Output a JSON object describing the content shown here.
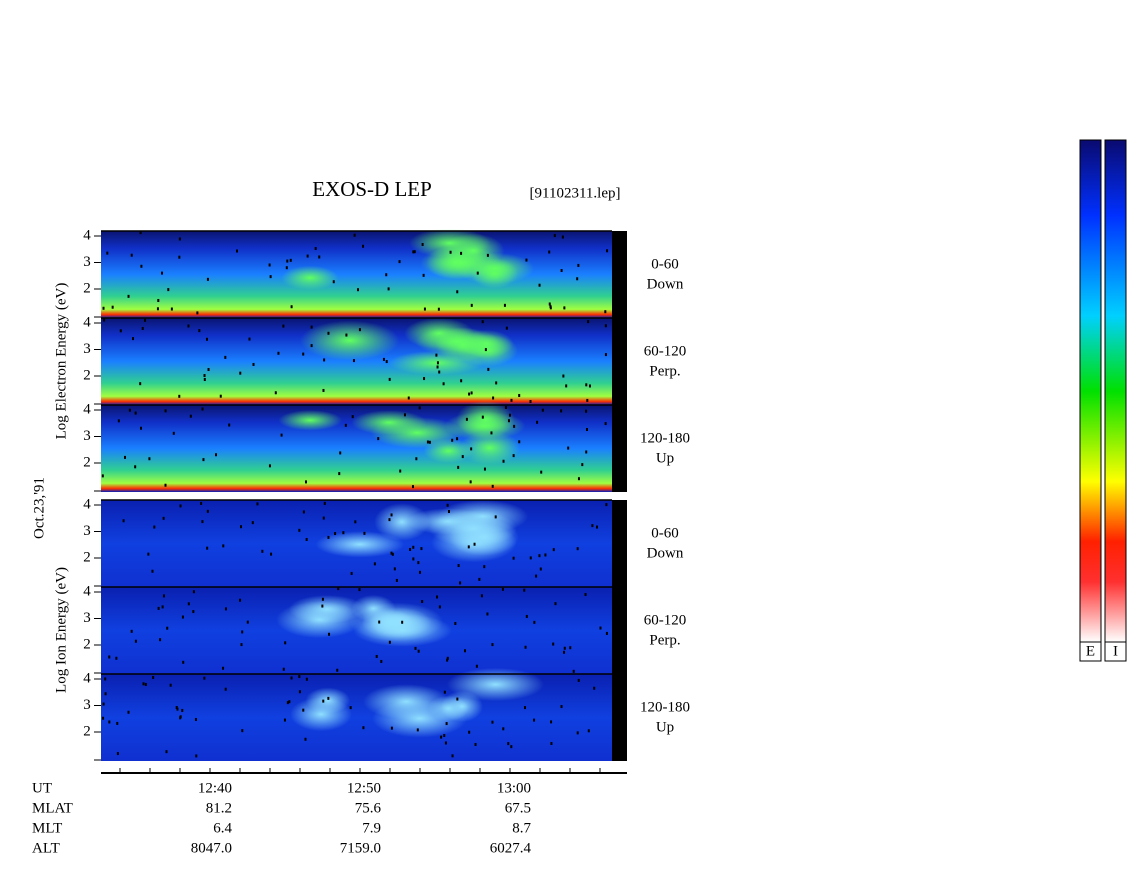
{
  "header": {
    "title": "EXOS-D LEP",
    "file": "[91102311.lep]"
  },
  "date": "Oct.23,'91",
  "groups": [
    {
      "label": "Log  Electron  Energy (eV)",
      "panels": [
        {
          "range": "0-60",
          "direction": "Down"
        },
        {
          "range": "60-120",
          "direction": "Perp."
        },
        {
          "range": "120-180",
          "direction": "Up"
        }
      ]
    },
    {
      "label": "Log  Ion  Energy (eV)",
      "panels": [
        {
          "range": "0-60",
          "direction": "Down"
        },
        {
          "range": "60-120",
          "direction": "Perp."
        },
        {
          "range": "120-180",
          "direction": "Up"
        }
      ]
    }
  ],
  "yticks": [
    "4",
    "3",
    "2"
  ],
  "time_axis": {
    "rows": [
      {
        "label": "UT",
        "values": [
          "12:40",
          "12:50",
          "13:00"
        ]
      },
      {
        "label": "MLAT",
        "values": [
          "81.2",
          "75.6",
          "67.5"
        ]
      },
      {
        "label": "MLT",
        "values": [
          "6.4",
          "7.9",
          "8.7"
        ]
      },
      {
        "label": "ALT",
        "values": [
          "8047.0",
          "7159.0",
          "6027.4"
        ]
      }
    ]
  },
  "colorbars": [
    "E",
    "I"
  ]
}
